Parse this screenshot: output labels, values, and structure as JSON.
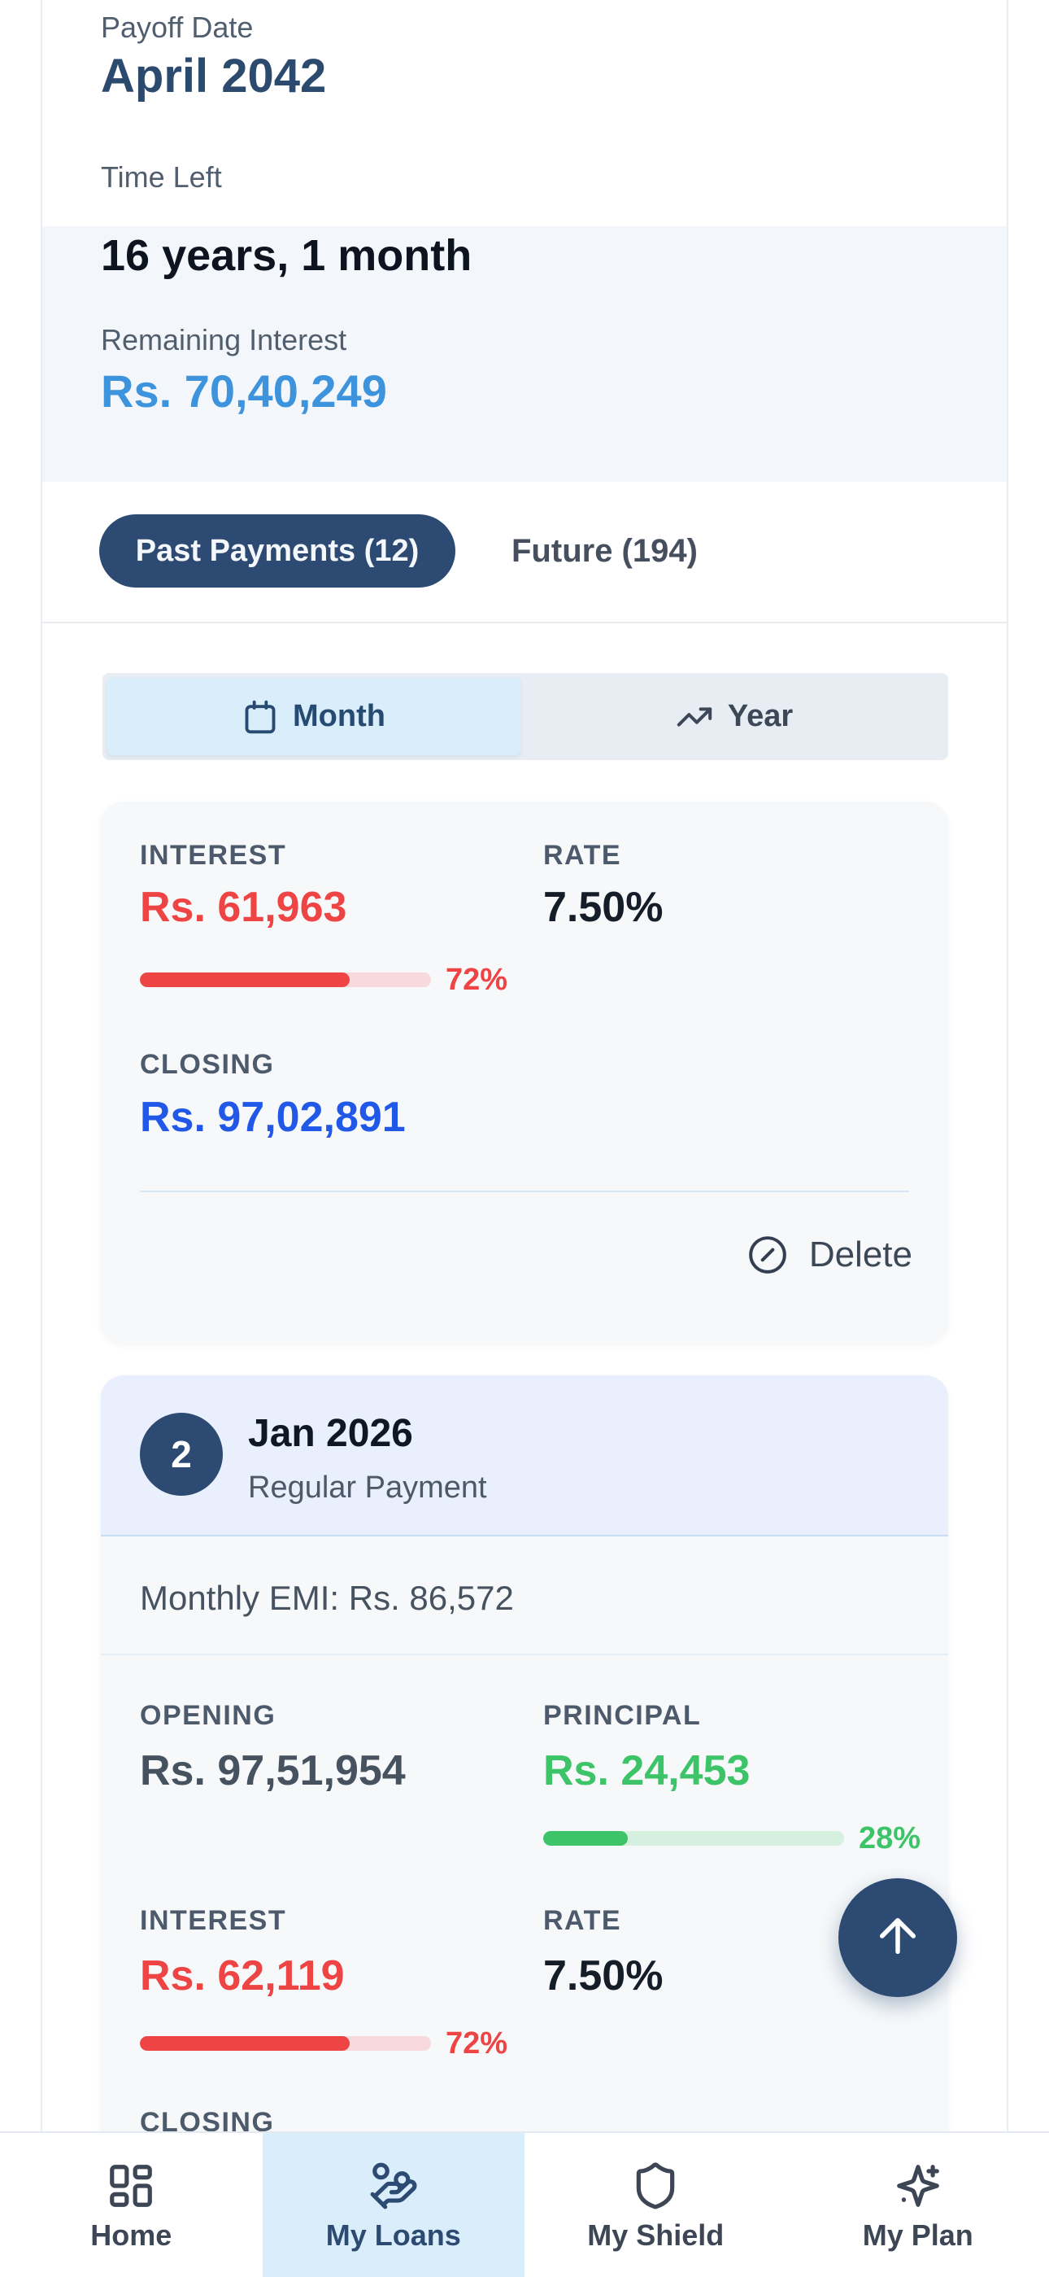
{
  "summary": {
    "payoff": {
      "label": "Payoff Date",
      "value": "April 2042"
    },
    "time_left": {
      "label": "Time Left",
      "value": "16 years, 1 month"
    },
    "remaining": {
      "label": "Remaining Interest",
      "value": "Rs. 70,40,249"
    }
  },
  "tabs": {
    "past": "Past Payments (12)",
    "future": "Future (194)"
  },
  "view_toggle": {
    "month": {
      "label": "Month",
      "icon": "calendar-icon"
    },
    "year": {
      "label": "Year",
      "icon": "trending-up-icon"
    }
  },
  "cards": [
    {
      "interest": {
        "label": "INTEREST",
        "value": "Rs. 61,963",
        "percent": 72,
        "percent_label": "72%"
      },
      "rate": {
        "label": "RATE",
        "value": "7.50%"
      },
      "closing": {
        "label": "CLOSING",
        "value": "Rs. 97,02,891"
      },
      "actions": {
        "delete_label": "Delete",
        "delete_icon": "circle-x-icon"
      }
    },
    {
      "badge": "2",
      "title": "Jan 2026",
      "subtitle": "Regular Payment",
      "emi": "Monthly EMI: Rs. 86,572",
      "opening": {
        "label": "OPENING",
        "value": "Rs. 97,51,954"
      },
      "principal": {
        "label": "PRINCIPAL",
        "value": "Rs. 24,453",
        "percent": 28,
        "percent_label": "28%"
      },
      "interest": {
        "label": "INTEREST",
        "value": "Rs. 62,119",
        "percent": 72,
        "percent_label": "72%"
      },
      "rate": {
        "label": "RATE",
        "value": "7.50%"
      },
      "closing_label": "CLOSING"
    }
  ],
  "fab": {
    "icon": "arrow-up-icon"
  },
  "nav": {
    "items": [
      {
        "label": "Home",
        "icon": "layout-dashboard-icon",
        "active": false
      },
      {
        "label": "My Loans",
        "icon": "hand-coins-icon",
        "active": true
      },
      {
        "label": "My Shield",
        "icon": "shield-icon",
        "active": false
      },
      {
        "label": "My Plan",
        "icon": "sparkles-icon",
        "active": false
      }
    ]
  },
  "colors": {
    "navy": "#2c4a72",
    "sky_blue_value": "#3d94dd",
    "royal_blue_value": "#2158e8",
    "red": "#ee4444",
    "red_track": "#f8dadc",
    "green": "#3ec468",
    "green_track": "#d5f0de",
    "active_tab_bg": "#d9edfb",
    "card_bg": "#f6f8fa",
    "card_header_bg": "#e9effc",
    "summary_tint": "#f3f7fb"
  }
}
